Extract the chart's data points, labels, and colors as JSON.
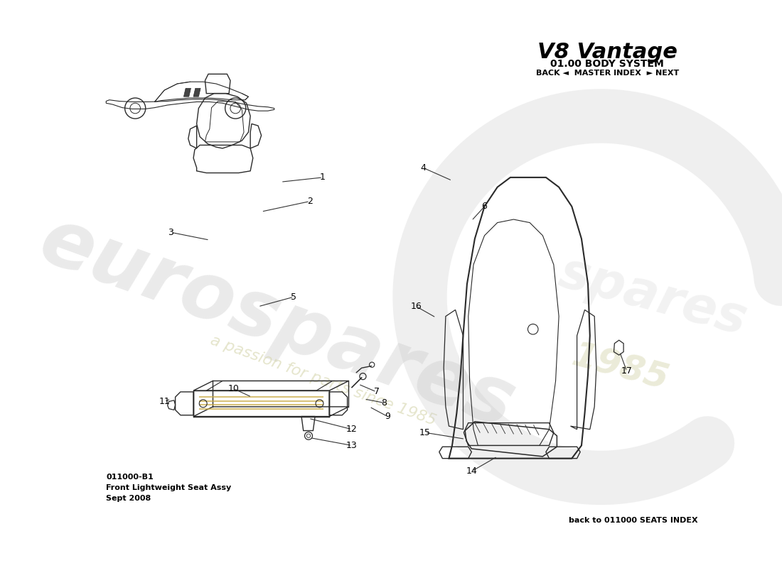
{
  "title_brand": "V8 Vantage",
  "subtitle": "01.00 BODY SYSTEM",
  "nav_text": "BACK ◄  MASTER INDEX  ► NEXT",
  "footer_code": "011000-B1",
  "footer_name": "Front Lightweight Seat Assy",
  "footer_date": "Sept 2008",
  "footer_index": "back to 011000 SEATS INDEX",
  "watermark_line1": "eurospares",
  "watermark_line2": "a passion for parts since 1985",
  "bg_color": "#ffffff",
  "wm_color1": "#cccccc",
  "wm_color2": "#d4d4aa",
  "drawing_color": "#2a2a2a",
  "label_color": "#000000",
  "label_fontsize": 9,
  "title_fontsize": 22,
  "subtitle_fontsize": 10,
  "nav_fontsize": 8,
  "footer_fontsize": 8,
  "index_fontsize": 8
}
